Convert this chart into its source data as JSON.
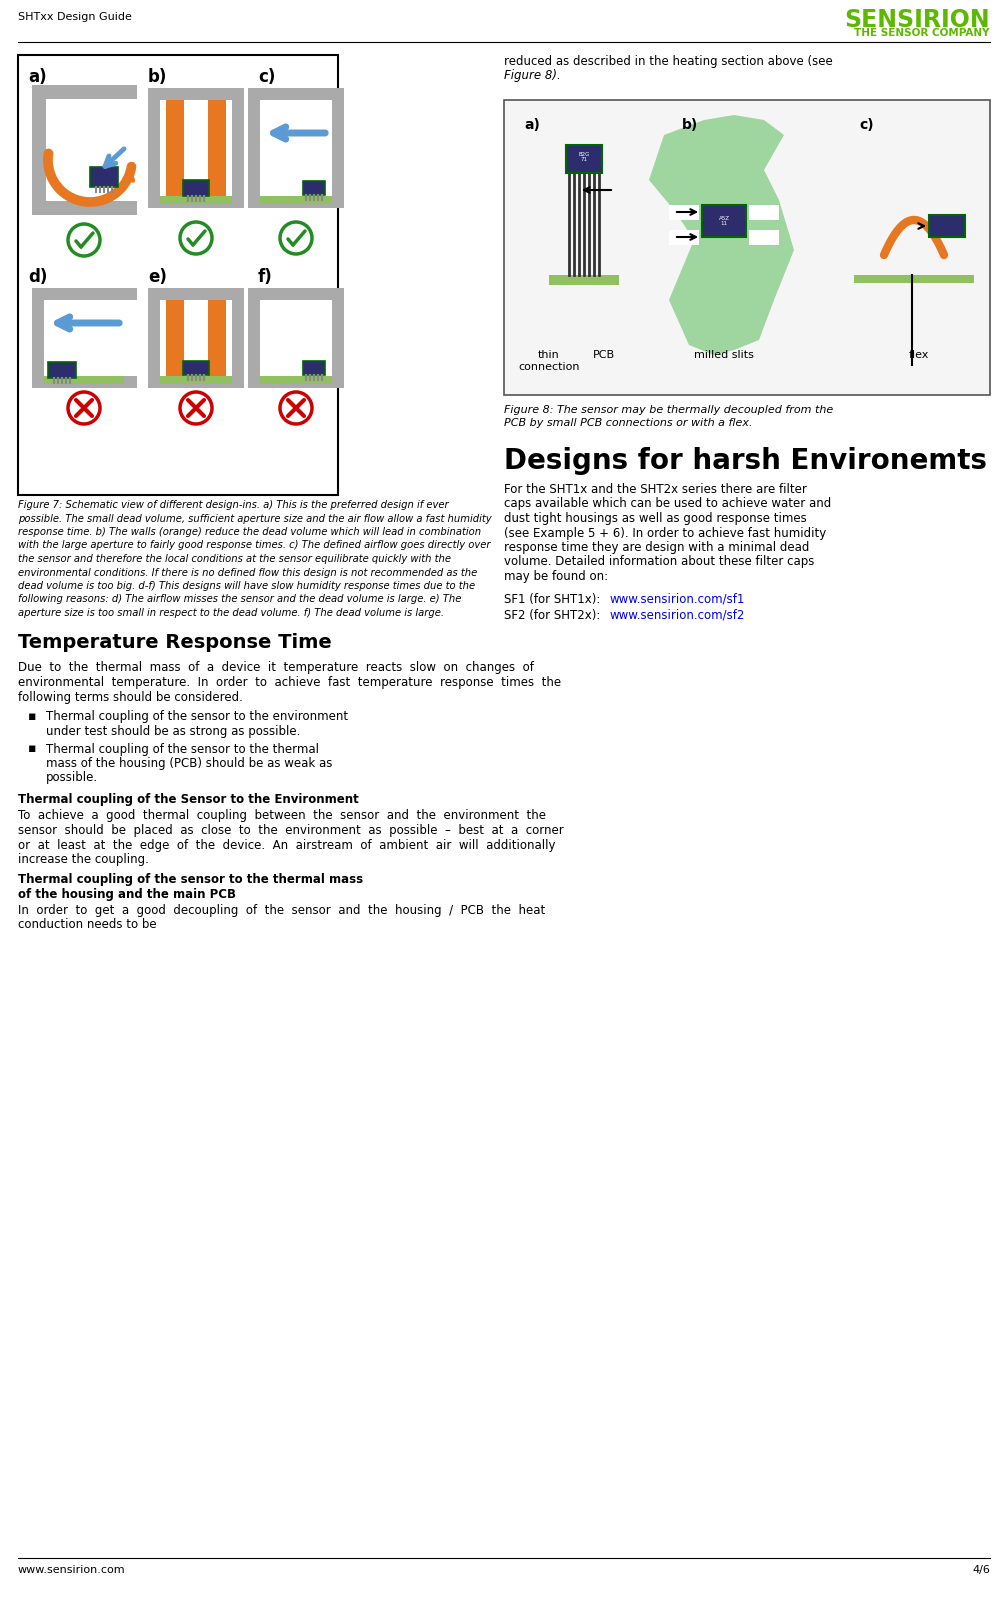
{
  "page_header_left": "SHTxx Design Guide",
  "page_footer_left": "www.sensirion.com",
  "page_footer_right": "4/6",
  "sensirion_logo": "SENSIRION",
  "sensirion_sub": "THE SENSOR COMPANY",
  "logo_color": "#5cb800",
  "fig7_caption": "Figure 7: Schematic view of different design-ins. a) This is the preferred design if ever possible. The small dead volume, sufficient aperture size and the air flow allow a fast humidity response time. b) The walls (orange) reduce the dead volume which will lead in combination with the large aperture to fairly good response times. c) The defined airflow goes directly over the sensor and therefore the local conditions at the sensor equilibrate quickly with the environmental conditions. If there is no defined flow this design is not recommended as the dead volume is too big. d-f) This designs will have slow humidity response times due to the following reasons: d) The airflow misses the sensor and the dead volume is large. e) The aperture size is too small in respect to the dead volume. f) The dead volume is large.",
  "fig8_caption": "Figure 8: The sensor may be thermally decoupled from the PCB by small PCB connections or with a flex.",
  "right_col_line1": "reduced as described in the heating section above (see",
  "right_col_line2": "Figure 8).",
  "section_title": "Designs for harsh Environemts",
  "para1_lines": [
    "For the SHT1x and the SHT2x series there are filter",
    "caps available which can be used to achieve water and",
    "dust tight housings as well as good response times",
    "(see Example 5 + 6). In order to achieve fast humidity",
    "response time they are design with a minimal dead",
    "volume. Detailed information about these filter caps",
    "may be found on:"
  ],
  "link1_prefix": "SF1 (for SHT1x): ",
  "link1_url": "www.sensirion.com/sf1",
  "link2_prefix": "SF2 (for SHT2x): ",
  "link2_url": "www.sensirion.com/sf2",
  "link_color": "#0000ee",
  "temp_title": "Temperature Response Time",
  "temp_para_lines": [
    "Due  to  the  thermal  mass  of  a  device  it  temperature",
    "reacts  slow  on  changes  of  environmental  temperature.",
    "In  order  to  achieve  fast  temperature  response  times  the",
    "following terms should be considered."
  ],
  "bullet1_lines": [
    "Thermal coupling of the sensor to the environment",
    "under test should be as strong as possible."
  ],
  "bullet2_lines": [
    "Thermal coupling of the sensor to the thermal",
    "mass of the housing (PCB) should be as weak as",
    "possible."
  ],
  "thermal_sub1": "Thermal coupling of the Sensor to the Environment",
  "thermal_para1_lines": [
    "To  achieve  a  good  thermal  coupling  between  the",
    "sensor  and  the  environment  the  sensor  should  be",
    "placed  as  close  to  the  environment  as  possible  –  best",
    "at  a  corner  or  at  least  at  the  edge  of  the  device.  An",
    "airstream  of  ambient  air  will  additionally  increase  the",
    "coupling."
  ],
  "thermal_sub2_line1": "Thermal coupling of the sensor to the thermal mass",
  "thermal_sub2_line2": "of the housing and the main PCB",
  "thermal_para2_lines": [
    "In  order  to  get  a  good  decoupling  of  the  sensor  and  the",
    "housing  /  PCB  the  heat  conduction  needs  to  be"
  ],
  "gray": "#aaaaaa",
  "orange": "#e87722",
  "blue": "#5b9bd5",
  "green_check": "#228B22",
  "red_x": "#cc0000",
  "pcb_green": "#90c060",
  "sensor_green_border": "#006600",
  "sensor_body": "#2d2d6e",
  "fig8_bg": "#f5f5f5"
}
